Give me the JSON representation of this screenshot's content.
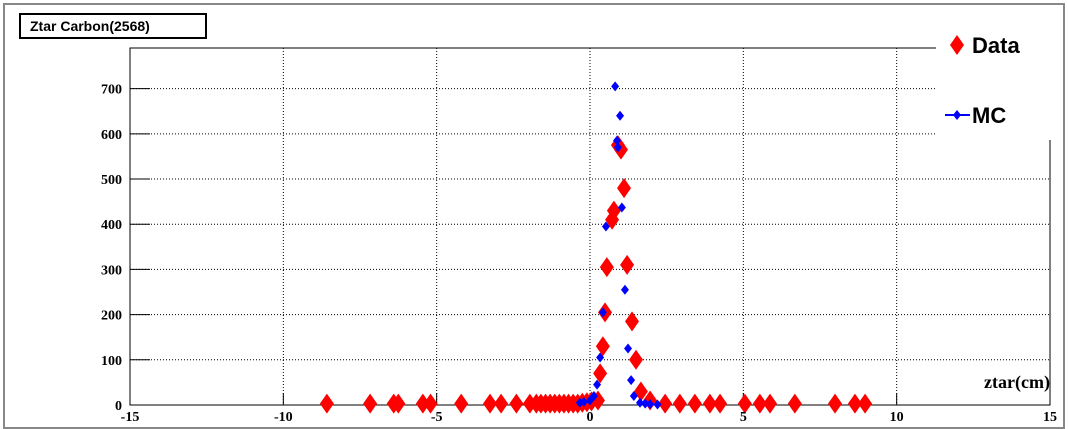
{
  "chart_data": {
    "type": "scatter",
    "title": "Ztar Carbon(2568)",
    "x_label": "ztar(cm)",
    "xlim": [
      -15,
      15
    ],
    "ylim": [
      0,
      790
    ],
    "xticks": [
      -15,
      -10,
      -5,
      0,
      5,
      10,
      15
    ],
    "yticks": [
      0,
      100,
      200,
      300,
      400,
      500,
      600,
      700
    ],
    "grid": true,
    "legend": "upper right",
    "series": [
      {
        "name": "Data",
        "color": "#ff0000",
        "x": [
          -8.58,
          -7.17,
          -6.4,
          -6.25,
          -5.45,
          -5.2,
          -4.2,
          -3.26,
          -2.9,
          -2.4,
          -1.96,
          -1.75,
          -1.6,
          -1.45,
          -1.3,
          -1.15,
          -1.0,
          -0.85,
          -0.7,
          -0.55,
          -0.4,
          -0.25,
          -0.1,
          0.05,
          0.26,
          0.33,
          0.42,
          0.49,
          0.55,
          0.72,
          0.78,
          0.91,
          1.01,
          1.11,
          1.21,
          1.37,
          1.5,
          1.66,
          1.96,
          2.45,
          2.93,
          3.42,
          3.91,
          4.24,
          5.05,
          5.54,
          5.87,
          6.68,
          7.99,
          8.64,
          8.97
        ],
        "values": [
          3,
          3,
          3,
          3,
          3,
          3,
          3,
          3,
          3,
          3,
          3,
          3,
          3,
          3,
          3,
          3,
          3,
          3,
          3,
          3,
          3,
          5,
          6,
          8,
          10,
          70,
          130,
          205,
          305,
          410,
          430,
          575,
          565,
          480,
          310,
          185,
          100,
          30,
          10,
          3,
          3,
          3,
          3,
          3,
          3,
          3,
          3,
          3,
          3,
          3,
          3
        ]
      },
      {
        "name": "MC",
        "color": "#0000ff",
        "x": [
          -0.33,
          -0.2,
          0.0,
          0.13,
          0.23,
          0.33,
          0.42,
          0.52,
          0.82,
          0.88,
          0.98,
          0.91,
          1.04,
          1.14,
          1.24,
          1.34,
          1.43,
          1.63,
          1.8,
          1.96,
          2.2
        ],
        "values": [
          5,
          7,
          10,
          20,
          45,
          105,
          205,
          395,
          705,
          585,
          640,
          570,
          437,
          255,
          125,
          55,
          20,
          5,
          3,
          2,
          1
        ]
      }
    ]
  }
}
